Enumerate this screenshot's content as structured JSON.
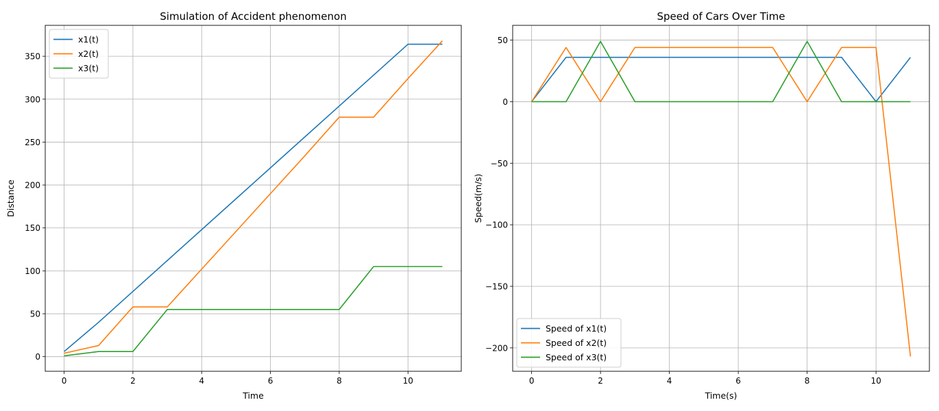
{
  "colors": {
    "c1": "#1f77b4",
    "c2": "#ff7f0e",
    "c3": "#2ca02c",
    "grid": "#b0b0b0"
  },
  "chart_data": [
    {
      "type": "line",
      "title": "Simulation of Accident phenomenon",
      "xlabel": "Time",
      "ylabel": "Distance",
      "xlim": [
        -0.55,
        11.55
      ],
      "ylim": [
        -17,
        386
      ],
      "xticks": [
        0,
        2,
        4,
        6,
        8,
        10
      ],
      "yticks": [
        0,
        50,
        100,
        150,
        200,
        250,
        300,
        350
      ],
      "grid": true,
      "legend": "top-left",
      "x": [
        0,
        1,
        2,
        3,
        4,
        5,
        6,
        7,
        8,
        9,
        10,
        11
      ],
      "series": [
        {
          "name": "x1(t)",
          "color": "#1f77b4",
          "values": [
            6,
            40,
            76,
            112,
            148,
            184,
            220,
            256,
            292,
            328,
            364,
            364
          ]
        },
        {
          "name": "x2(t)",
          "color": "#ff7f0e",
          "values": [
            4,
            13,
            58,
            58,
            102,
            146,
            190,
            234,
            279,
            279,
            324,
            368
          ]
        },
        {
          "name": "x3(t)",
          "color": "#2ca02c",
          "values": [
            1,
            6,
            6,
            55,
            55,
            55,
            55,
            55,
            55,
            105,
            105,
            105
          ]
        }
      ]
    },
    {
      "type": "line",
      "title": "Speed of Cars Over Time",
      "xlabel": "Time(s)",
      "ylabel": "Speed(m/s)",
      "xlim": [
        -0.55,
        11.55
      ],
      "ylim": [
        -219,
        62
      ],
      "xticks": [
        0,
        2,
        4,
        6,
        8,
        10
      ],
      "yticks": [
        50,
        0,
        -50,
        -100,
        -150,
        -200
      ],
      "grid": true,
      "legend": "bottom-left",
      "x": [
        0,
        1,
        2,
        3,
        4,
        5,
        6,
        7,
        8,
        9,
        10,
        11
      ],
      "series": [
        {
          "name": "Speed of x1(t)",
          "color": "#1f77b4",
          "values": [
            0,
            36,
            36,
            36,
            36,
            36,
            36,
            36,
            36,
            36,
            0,
            36
          ]
        },
        {
          "name": "Speed of x2(t)",
          "color": "#ff7f0e",
          "values": [
            0,
            44,
            0,
            44,
            44,
            44,
            44,
            44,
            0,
            44,
            44,
            -207
          ]
        },
        {
          "name": "Speed of x3(t)",
          "color": "#2ca02c",
          "values": [
            0,
            0,
            49,
            0,
            0,
            0,
            0,
            0,
            49,
            0,
            0,
            0
          ]
        }
      ]
    }
  ]
}
